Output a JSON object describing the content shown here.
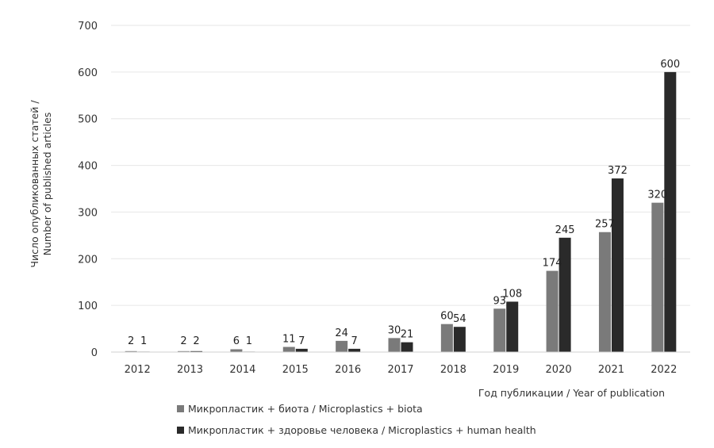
{
  "chart_data": {
    "type": "bar",
    "categories": [
      "2012",
      "2013",
      "2014",
      "2015",
      "2016",
      "2017",
      "2018",
      "2019",
      "2020",
      "2021",
      "2022"
    ],
    "series": [
      {
        "name": "Микропластик + биота / Microplastics + biota",
        "values": [
          2,
          2,
          6,
          11,
          24,
          30,
          60,
          93,
          174,
          257,
          320
        ],
        "color": "#7a7a7a"
      },
      {
        "name": "Микропластик + здоровье человека / Microplastics + human health",
        "values": [
          1,
          2,
          1,
          7,
          7,
          21,
          54,
          108,
          245,
          372,
          600
        ],
        "color": "#2a2a2a"
      }
    ],
    "xlabel": "Год публикации / Year of publication",
    "ylabel_lines": [
      "Число опубликованных статей /",
      "Number of published articles"
    ],
    "ylim": [
      0,
      700
    ],
    "yticks": [
      0,
      100,
      200,
      300,
      400,
      500,
      600,
      700
    ],
    "grid": true,
    "legend_position": "bottom-left",
    "data_labels": true
  }
}
